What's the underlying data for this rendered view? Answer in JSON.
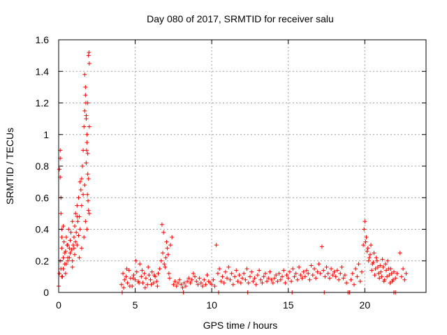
{
  "chart_data": {
    "type": "scatter",
    "title": "Day 080 of 2017, SRMTID for receiver salu",
    "xlabel": "GPS time / hours",
    "ylabel": "SRMTID / TECUs",
    "xlim": [
      0,
      24
    ],
    "ylim": [
      0,
      1.6
    ],
    "xticks": [
      0,
      5,
      10,
      15,
      20
    ],
    "xtick_labels": [
      "0",
      "5",
      "10",
      "15",
      "20"
    ],
    "yticks": [
      0,
      0.2,
      0.4,
      0.6,
      0.8,
      1.0,
      1.2,
      1.4,
      1.6
    ],
    "ytick_labels": [
      "0",
      "0.2",
      "0.4",
      "0.6",
      "0.8",
      "1",
      "1.2",
      "1.4",
      "1.6"
    ],
    "grid": true,
    "marker": "+",
    "color": "#ff0000",
    "series": [
      {
        "name": "SRMTID",
        "x": [
          0.0,
          0.05,
          0.1,
          0.15,
          0.2,
          0.25,
          0.3,
          0.35,
          0.4,
          0.45,
          0.5,
          0.55,
          0.6,
          0.65,
          0.7,
          0.75,
          0.8,
          0.85,
          0.9,
          0.95,
          1.0,
          1.05,
          1.1,
          1.15,
          1.2,
          1.25,
          1.3,
          1.35,
          1.4,
          1.45,
          1.5,
          1.55,
          1.6,
          1.65,
          1.7,
          1.75,
          1.8,
          1.85,
          1.9,
          1.95,
          2.0,
          0.05,
          0.1,
          0.15,
          0.2,
          0.3,
          0.4,
          0.5,
          0.6,
          0.7,
          0.8,
          0.9,
          1.0,
          1.1,
          1.2,
          1.3,
          1.4,
          1.5,
          1.6,
          1.7,
          1.8,
          1.9,
          2.0,
          0.1,
          0.2,
          0.3,
          0.45,
          0.6,
          0.75,
          0.9,
          1.05,
          1.2,
          1.35,
          1.5,
          1.65,
          1.75,
          1.85,
          1.95,
          1.7,
          1.75,
          1.8,
          1.85,
          1.9,
          1.95,
          2.0,
          1.78,
          1.82,
          1.88,
          1.92,
          1.98,
          0.1,
          0.15,
          0.2,
          4.1,
          4.2,
          4.3,
          4.4,
          4.5,
          4.6,
          4.7,
          4.8,
          4.9,
          5.0,
          5.1,
          5.2,
          5.3,
          5.4,
          5.5,
          5.6,
          5.7,
          5.8,
          5.9,
          6.0,
          6.1,
          6.2,
          6.3,
          6.4,
          6.5,
          4.25,
          4.45,
          4.65,
          4.85,
          5.05,
          5.25,
          5.45,
          5.65,
          5.85,
          6.05,
          6.25,
          6.45,
          6.6,
          6.7,
          6.8,
          6.9,
          7.0,
          7.1,
          7.2,
          7.3,
          7.4,
          6.75,
          6.85,
          6.95,
          7.05,
          7.15,
          7.25,
          7.5,
          7.6,
          7.7,
          7.8,
          7.9,
          8.0,
          8.1,
          8.2,
          8.3,
          8.4,
          8.5,
          8.6,
          8.7,
          8.8,
          8.9,
          9.0,
          9.1,
          9.2,
          9.3,
          9.4,
          9.5,
          9.6,
          9.7,
          9.8,
          9.9,
          10.0,
          10.1,
          10.2,
          10.3,
          10.4,
          10.5,
          10.6,
          10.7,
          10.8,
          10.9,
          11.0,
          11.1,
          11.2,
          11.3,
          11.4,
          11.5,
          11.6,
          11.7,
          11.8,
          11.9,
          12.0,
          12.1,
          12.2,
          12.3,
          12.4,
          12.5,
          12.6,
          12.7,
          12.8,
          12.9,
          13.0,
          13.1,
          13.2,
          13.3,
          13.4,
          13.5,
          13.6,
          13.7,
          13.8,
          13.9,
          14.0,
          14.1,
          14.2,
          14.3,
          14.4,
          14.5,
          14.6,
          14.7,
          14.8,
          14.9,
          15.0,
          15.1,
          15.2,
          15.3,
          15.4,
          15.5,
          15.6,
          15.7,
          15.8,
          15.9,
          16.0,
          16.1,
          16.2,
          16.3,
          16.4,
          16.5,
          16.6,
          16.7,
          16.8,
          16.9,
          17.0,
          17.1,
          17.2,
          17.3,
          17.4,
          17.5,
          17.6,
          17.7,
          17.8,
          17.9,
          18.0,
          18.1,
          18.2,
          18.3,
          18.4,
          18.5,
          18.6,
          18.7,
          18.8,
          19.1,
          19.2,
          19.3,
          19.4,
          19.5,
          19.6,
          19.7,
          19.8,
          19.9,
          20.0,
          20.1,
          20.2,
          20.3,
          20.4,
          20.5,
          20.6,
          20.7,
          20.8,
          20.9,
          21.0,
          21.1,
          21.2,
          21.3,
          21.4,
          21.5,
          21.6,
          21.7,
          21.8,
          21.9,
          22.0,
          22.1,
          22.3,
          22.4,
          22.5,
          22.6,
          22.7,
          19.95,
          20.05,
          20.15,
          20.25,
          20.35,
          20.45,
          20.55,
          20.65,
          20.75,
          20.85,
          20.95,
          21.05,
          21.15,
          21.25,
          21.35,
          21.45,
          21.55,
          21.65,
          21.75,
          21.85,
          4.15,
          8.15,
          10.45,
          12.35,
          15.25,
          17.35,
          19.0,
          21.9,
          18.9,
          22.0
        ],
        "y": [
          0.04,
          0.12,
          0.2,
          0.15,
          0.28,
          0.1,
          0.22,
          0.32,
          0.18,
          0.26,
          0.35,
          0.3,
          0.22,
          0.4,
          0.28,
          0.33,
          0.38,
          0.27,
          0.45,
          0.3,
          0.35,
          0.42,
          0.5,
          0.38,
          0.55,
          0.45,
          0.6,
          0.48,
          0.7,
          0.65,
          0.72,
          0.8,
          0.9,
          1.05,
          1.15,
          1.3,
          1.1,
          0.95,
          1.2,
          1.5,
          1.45,
          0.78,
          0.9,
          0.5,
          0.35,
          0.42,
          0.25,
          0.18,
          0.3,
          0.22,
          0.38,
          0.2,
          0.28,
          0.32,
          0.48,
          0.36,
          0.4,
          0.55,
          0.62,
          0.68,
          0.82,
          0.75,
          0.5,
          0.85,
          0.1,
          0.15,
          0.12,
          0.2,
          0.25,
          0.16,
          0.24,
          0.3,
          0.22,
          0.28,
          0.35,
          0.45,
          0.4,
          0.52,
          1.38,
          1.25,
          1.12,
          1.0,
          0.88,
          0.72,
          1.05,
          1.2,
          0.9,
          0.62,
          0.58,
          1.52,
          0.73,
          0.6,
          0.4,
          0.05,
          0.12,
          0.08,
          0.1,
          0.06,
          0.14,
          0.09,
          0.04,
          0.11,
          0.08,
          0.13,
          0.07,
          0.18,
          0.1,
          0.06,
          0.12,
          0.09,
          0.05,
          0.11,
          0.08,
          0.13,
          0.06,
          0.1,
          0.07,
          0.12,
          0.03,
          0.15,
          0.04,
          0.09,
          0.2,
          0.06,
          0.14,
          0.03,
          0.16,
          0.05,
          0.11,
          0.04,
          0.15,
          0.2,
          0.25,
          0.18,
          0.22,
          0.28,
          0.12,
          0.3,
          0.35,
          0.43,
          0.38,
          0.16,
          0.32,
          0.24,
          0.09,
          0.05,
          0.07,
          0.04,
          0.06,
          0.08,
          0.05,
          0.03,
          0.06,
          0.04,
          0.07,
          0.09,
          0.06,
          0.08,
          0.12,
          0.1,
          0.07,
          0.05,
          0.09,
          0.06,
          0.04,
          0.08,
          0.05,
          0.11,
          0.07,
          0.06,
          0.05,
          0.08,
          0.04,
          0.3,
          0.12,
          0.15,
          0.07,
          0.1,
          0.06,
          0.13,
          0.09,
          0.16,
          0.08,
          0.12,
          0.05,
          0.1,
          0.14,
          0.07,
          0.11,
          0.06,
          0.09,
          0.12,
          0.08,
          0.15,
          0.06,
          0.1,
          0.13,
          0.07,
          0.09,
          0.05,
          0.11,
          0.14,
          0.08,
          0.06,
          0.1,
          0.12,
          0.07,
          0.09,
          0.13,
          0.08,
          0.06,
          0.09,
          0.11,
          0.07,
          0.12,
          0.08,
          0.1,
          0.14,
          0.06,
          0.11,
          0.09,
          0.13,
          0.07,
          0.15,
          0.1,
          0.12,
          0.08,
          0.16,
          0.11,
          0.09,
          0.13,
          0.1,
          0.14,
          0.12,
          0.08,
          0.17,
          0.11,
          0.15,
          0.09,
          0.13,
          0.18,
          0.12,
          0.29,
          0.14,
          0.1,
          0.16,
          0.12,
          0.09,
          0.15,
          0.11,
          0.13,
          0.1,
          0.14,
          0.08,
          0.12,
          0.16,
          0.09,
          0.11,
          0.06,
          0.08,
          0.12,
          0.05,
          0.15,
          0.1,
          0.18,
          0.07,
          0.13,
          0.3,
          0.45,
          0.35,
          0.28,
          0.22,
          0.3,
          0.18,
          0.25,
          0.15,
          0.2,
          0.12,
          0.17,
          0.1,
          0.16,
          0.08,
          0.14,
          0.2,
          0.11,
          0.15,
          0.07,
          0.13,
          0.09,
          0.12,
          0.25,
          0.1,
          0.15,
          0.08,
          0.12,
          0.4,
          0.32,
          0.26,
          0.2,
          0.24,
          0.14,
          0.19,
          0.11,
          0.22,
          0.16,
          0.09,
          0.13,
          0.21,
          0.07,
          0.18,
          0.1,
          0.15,
          0.06,
          0.12,
          0.08,
          0.0,
          0.0,
          0.0,
          0.0,
          0.0,
          0.0,
          0.0,
          0.0,
          0.0,
          0.0
        ]
      }
    ]
  }
}
